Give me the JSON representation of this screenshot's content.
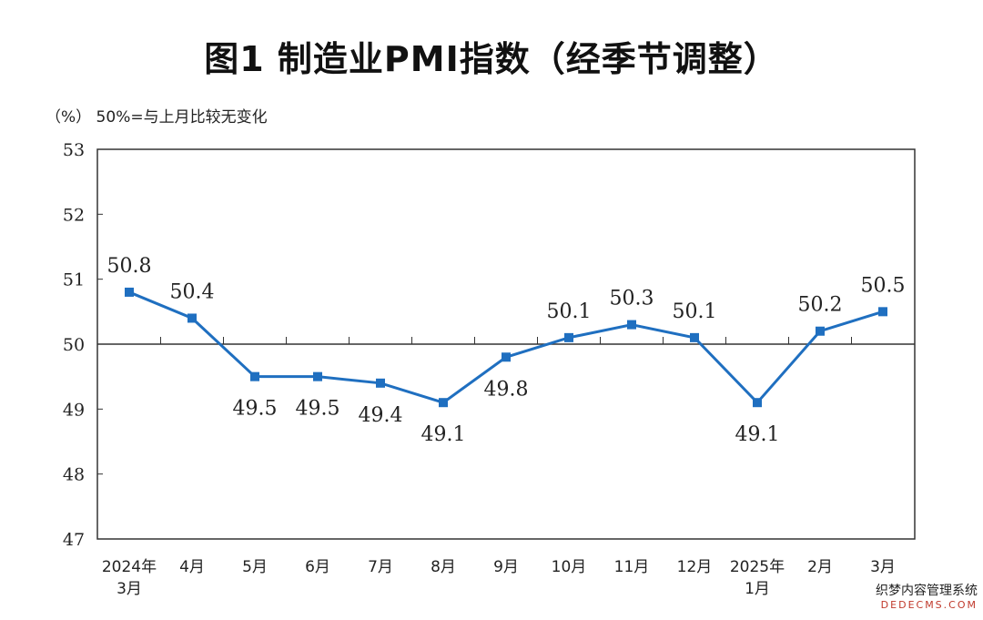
{
  "title": "图1  制造业PMI指数（经季节调整）",
  "unit_note": "（%）  50%=与上月比较无变化",
  "watermark": {
    "line1": "织梦内容管理系统",
    "line2": "DEDECMS.COM"
  },
  "colors": {
    "series": "#1f6fc0",
    "axis": "#333333",
    "reference": "#333333"
  },
  "chart_data": {
    "type": "line",
    "title": "图1  制造业PMI指数（经季节调整）",
    "ylabel": "（%）",
    "annotation": "50%=与上月比较无变化",
    "ylim": [
      47,
      53
    ],
    "yticks": [
      47,
      48,
      49,
      50,
      51,
      52,
      53
    ],
    "reference_line": 50,
    "marker": "square",
    "grid": false,
    "categories": [
      [
        "2024年",
        "3月"
      ],
      [
        "4月"
      ],
      [
        "5月"
      ],
      [
        "6月"
      ],
      [
        "7月"
      ],
      [
        "8月"
      ],
      [
        "9月"
      ],
      [
        "10月"
      ],
      [
        "11月"
      ],
      [
        "12月"
      ],
      [
        "2025年",
        "1月"
      ],
      [
        "2月"
      ],
      [
        "3月"
      ]
    ],
    "values": [
      50.8,
      50.4,
      49.5,
      49.5,
      49.4,
      49.1,
      49.8,
      50.1,
      50.3,
      50.1,
      49.1,
      50.2,
      50.5
    ],
    "value_labels": [
      "50.8",
      "50.4",
      "49.5",
      "49.5",
      "49.4",
      "49.1",
      "49.8",
      "50.1",
      "50.3",
      "50.1",
      "49.1",
      "50.2",
      "50.5"
    ]
  }
}
